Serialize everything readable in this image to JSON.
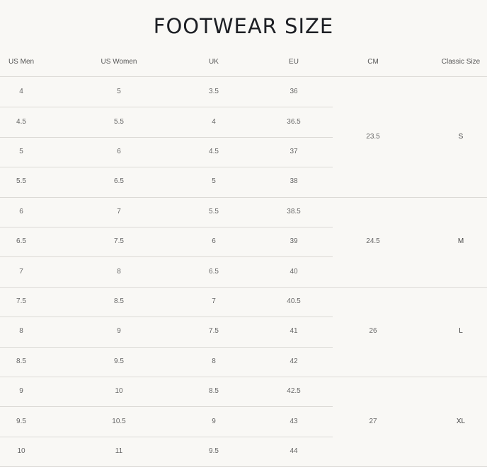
{
  "title": "FOOTWEAR SIZE",
  "columns": [
    "US Men",
    "US Women",
    "UK",
    "EU",
    "CM",
    "Classic Size"
  ],
  "rows": [
    [
      "4",
      "5",
      "3.5",
      "36"
    ],
    [
      "4.5",
      "5.5",
      "4",
      "36.5"
    ],
    [
      "5",
      "6",
      "4.5",
      "37"
    ],
    [
      "5.5",
      "6.5",
      "5",
      "38"
    ],
    [
      "6",
      "7",
      "5.5",
      "38.5"
    ],
    [
      "6.5",
      "7.5",
      "6",
      "39"
    ],
    [
      "7",
      "8",
      "6.5",
      "40"
    ],
    [
      "7.5",
      "8.5",
      "7",
      "40.5"
    ],
    [
      "8",
      "9",
      "7.5",
      "41"
    ],
    [
      "8.5",
      "9.5",
      "8",
      "42"
    ],
    [
      "9",
      "10",
      "8.5",
      "42.5"
    ],
    [
      "9.5",
      "10.5",
      "9",
      "43"
    ],
    [
      "10",
      "11",
      "9.5",
      "44"
    ]
  ],
  "groups": [
    {
      "cm": "23.5",
      "classic": "S",
      "rows": 4
    },
    {
      "cm": "24.5",
      "classic": "M",
      "rows": 3
    },
    {
      "cm": "26",
      "classic": "L",
      "rows": 3
    },
    {
      "cm": "27",
      "classic": "XL",
      "rows": 3
    }
  ]
}
